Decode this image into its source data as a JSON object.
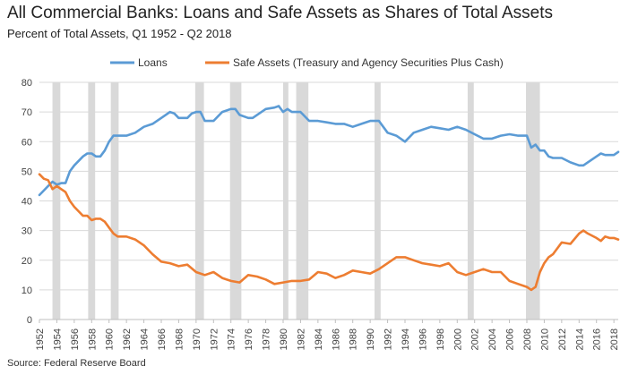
{
  "title": "All Commercial Banks: Loans and Safe Assets as Shares of Total Assets",
  "subtitle": "Percent of Total Assets, Q1 1952 - Q2 2018",
  "source": "Source: Federal Reserve Board",
  "colors": {
    "loans": "#5b9bd5",
    "safe_assets": "#ed7d31",
    "recession": "#d9d9d9",
    "grid": "#d9d9d9",
    "axis": "#bfbfbf"
  },
  "chart_data": {
    "type": "line",
    "title": "All Commercial Banks: Loans and Safe Assets as Shares of Total Assets",
    "subtitle": "Percent of Total Assets, Q1 1952 - Q2 2018",
    "xlabel": "",
    "ylabel": "",
    "xlim": [
      1952.0,
      2018.5
    ],
    "ylim": [
      0,
      80
    ],
    "y_ticks": [
      0,
      10,
      20,
      30,
      40,
      50,
      60,
      70,
      80
    ],
    "x_ticks": [
      1952,
      1954,
      1956,
      1958,
      1960,
      1962,
      1964,
      1966,
      1968,
      1970,
      1972,
      1974,
      1976,
      1978,
      1980,
      1982,
      1984,
      1986,
      1988,
      1990,
      1992,
      1994,
      1996,
      1998,
      2000,
      2002,
      2004,
      2006,
      2008,
      2010,
      2012,
      2014,
      2016,
      2018
    ],
    "grid": "horizontal",
    "legend": "top-center",
    "recessions": [
      [
        1953.5,
        1954.4
      ],
      [
        1957.6,
        1958.4
      ],
      [
        1960.2,
        1961.1
      ],
      [
        1969.9,
        1970.9
      ],
      [
        1973.9,
        1975.2
      ],
      [
        1980.0,
        1980.6
      ],
      [
        1981.5,
        1982.9
      ],
      [
        1990.5,
        1991.2
      ],
      [
        2001.2,
        2001.9
      ],
      [
        2007.9,
        2009.5
      ]
    ],
    "series": [
      {
        "name": "Loans",
        "color": "#5b9bd5",
        "x": [
          1952.0,
          1952.5,
          1953.0,
          1953.5,
          1954.0,
          1954.5,
          1955.0,
          1955.5,
          1956.0,
          1957.0,
          1957.5,
          1958.0,
          1958.5,
          1959.0,
          1959.5,
          1960.0,
          1960.5,
          1961.0,
          1961.5,
          1962.0,
          1963.0,
          1964.0,
          1965.0,
          1966.0,
          1966.5,
          1967.0,
          1967.5,
          1968.0,
          1969.0,
          1969.5,
          1970.0,
          1970.5,
          1971.0,
          1971.5,
          1972.0,
          1973.0,
          1974.0,
          1974.5,
          1975.0,
          1976.0,
          1976.5,
          1977.0,
          1978.0,
          1979.0,
          1979.5,
          1980.0,
          1980.5,
          1981.0,
          1982.0,
          1983.0,
          1984.0,
          1985.0,
          1986.0,
          1987.0,
          1988.0,
          1989.0,
          1990.0,
          1991.0,
          1992.0,
          1993.0,
          1994.0,
          1995.0,
          1996.0,
          1997.0,
          1998.0,
          1999.0,
          2000.0,
          2001.0,
          2002.0,
          2003.0,
          2004.0,
          2005.0,
          2006.0,
          2007.0,
          2008.0,
          2008.5,
          2009.0,
          2009.5,
          2010.0,
          2010.5,
          2011.0,
          2012.0,
          2013.0,
          2014.0,
          2014.5,
          2015.0,
          2016.0,
          2016.5,
          2017.0,
          2017.5,
          2018.0,
          2018.5
        ],
        "values": [
          42,
          43.5,
          45,
          46.5,
          45.5,
          46,
          46,
          50,
          52,
          55,
          56,
          56,
          55,
          55,
          57,
          60,
          62,
          62,
          62,
          62,
          63,
          65,
          66,
          68,
          69,
          70,
          69.5,
          68,
          68,
          69.5,
          70,
          70,
          67,
          67,
          67,
          70,
          71,
          71,
          69,
          68,
          68,
          69,
          71,
          71.5,
          72,
          70,
          71,
          70,
          70,
          67,
          67,
          66.5,
          66,
          66,
          65,
          66,
          67,
          67,
          63,
          62,
          60,
          63,
          64,
          65,
          64.5,
          64,
          65,
          64,
          62.5,
          61,
          61,
          62,
          62.5,
          62,
          62,
          58,
          59,
          57,
          57,
          55,
          54.5,
          54.5,
          53,
          52,
          52,
          53,
          55,
          56,
          55.5,
          55.5,
          55.5,
          56.5
        ]
      },
      {
        "name": "Safe Assets (Treasury and Agency Securities Plus Cash)",
        "color": "#ed7d31",
        "x": [
          1952.0,
          1952.5,
          1953.0,
          1953.5,
          1954.0,
          1954.5,
          1955.0,
          1955.5,
          1956.0,
          1957.0,
          1957.5,
          1958.0,
          1958.5,
          1959.0,
          1959.5,
          1960.0,
          1960.5,
          1961.0,
          1962.0,
          1963.0,
          1964.0,
          1965.0,
          1966.0,
          1967.0,
          1968.0,
          1969.0,
          1970.0,
          1971.0,
          1972.0,
          1973.0,
          1974.0,
          1975.0,
          1976.0,
          1977.0,
          1978.0,
          1979.0,
          1980.0,
          1981.0,
          1982.0,
          1983.0,
          1984.0,
          1985.0,
          1986.0,
          1987.0,
          1988.0,
          1989.0,
          1990.0,
          1991.0,
          1992.0,
          1993.0,
          1994.0,
          1995.0,
          1996.0,
          1997.0,
          1998.0,
          1999.0,
          2000.0,
          2001.0,
          2002.0,
          2003.0,
          2004.0,
          2005.0,
          2006.0,
          2007.0,
          2008.0,
          2008.5,
          2009.0,
          2009.5,
          2010.0,
          2010.5,
          2011.0,
          2012.0,
          2013.0,
          2014.0,
          2014.5,
          2015.0,
          2016.0,
          2016.5,
          2017.0,
          2017.5,
          2018.0,
          2018.5
        ],
        "values": [
          49,
          47.5,
          47,
          44,
          45,
          44,
          43,
          40,
          38,
          35,
          35,
          33.5,
          34,
          34,
          33,
          31,
          29,
          28,
          28,
          27,
          25,
          22,
          19.5,
          19,
          18,
          18.5,
          16,
          15,
          16,
          14,
          13,
          12.5,
          15,
          14.5,
          13.5,
          12,
          12.5,
          13,
          13,
          13.5,
          16,
          15.5,
          14,
          15,
          16.5,
          16,
          15.5,
          17,
          19,
          21,
          21,
          20,
          19,
          18.5,
          18,
          19,
          16,
          15,
          16,
          17,
          16,
          16,
          13,
          12,
          11,
          10,
          11,
          16,
          19,
          21,
          22,
          26,
          25.5,
          29,
          30,
          29,
          27.5,
          26.5,
          28,
          27.5,
          27.5,
          27
        ]
      }
    ]
  }
}
